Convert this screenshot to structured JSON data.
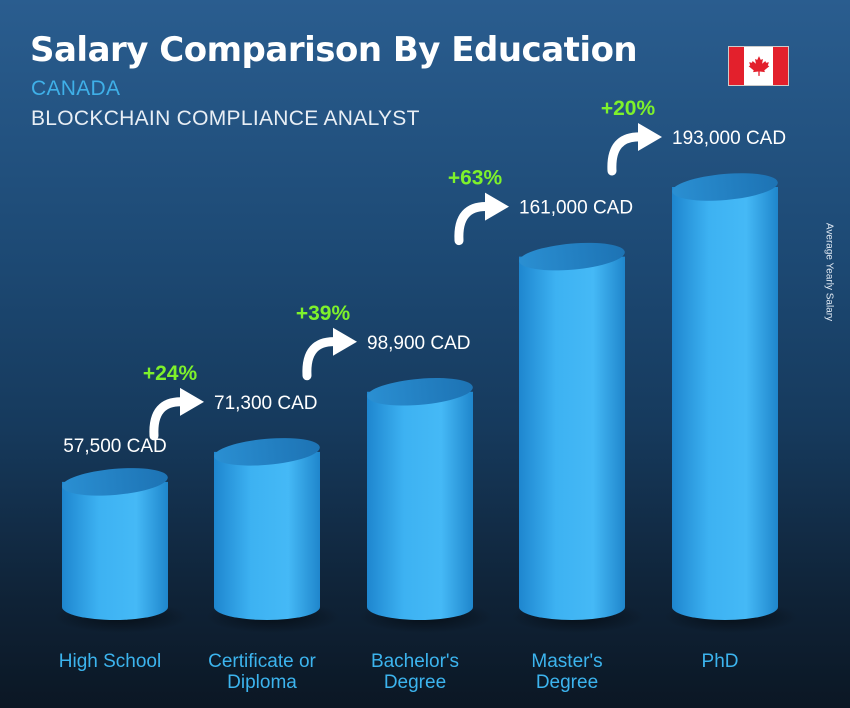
{
  "header": {
    "title": "Salary Comparison By Education",
    "country": "CANADA",
    "job": "BLOCKCHAIN COMPLIANCE ANALYST"
  },
  "flag_icon": "canada-flag-icon",
  "side_label": "Average Yearly Salary",
  "colors": {
    "bar": "#3aaef0",
    "bar_top": "#2785c3",
    "percent": "#7ef12b",
    "category": "#3cb4ee",
    "country": "#3fb0e8"
  },
  "chart_data": {
    "type": "bar",
    "categories": [
      [
        "High School"
      ],
      [
        "Certificate or",
        "Diploma"
      ],
      [
        "Bachelor's",
        "Degree"
      ],
      [
        "Master's",
        "Degree"
      ],
      [
        "PhD"
      ]
    ],
    "values": [
      57500,
      71300,
      98900,
      161000,
      193000
    ],
    "value_labels": [
      "57,500 CAD",
      "71,300 CAD",
      "98,900 CAD",
      "161,000 CAD",
      "193,000 CAD"
    ],
    "increases": [
      "+24%",
      "+39%",
      "+63%",
      "+20%"
    ],
    "unit": "CAD",
    "ylabel": "Average Yearly Salary"
  }
}
